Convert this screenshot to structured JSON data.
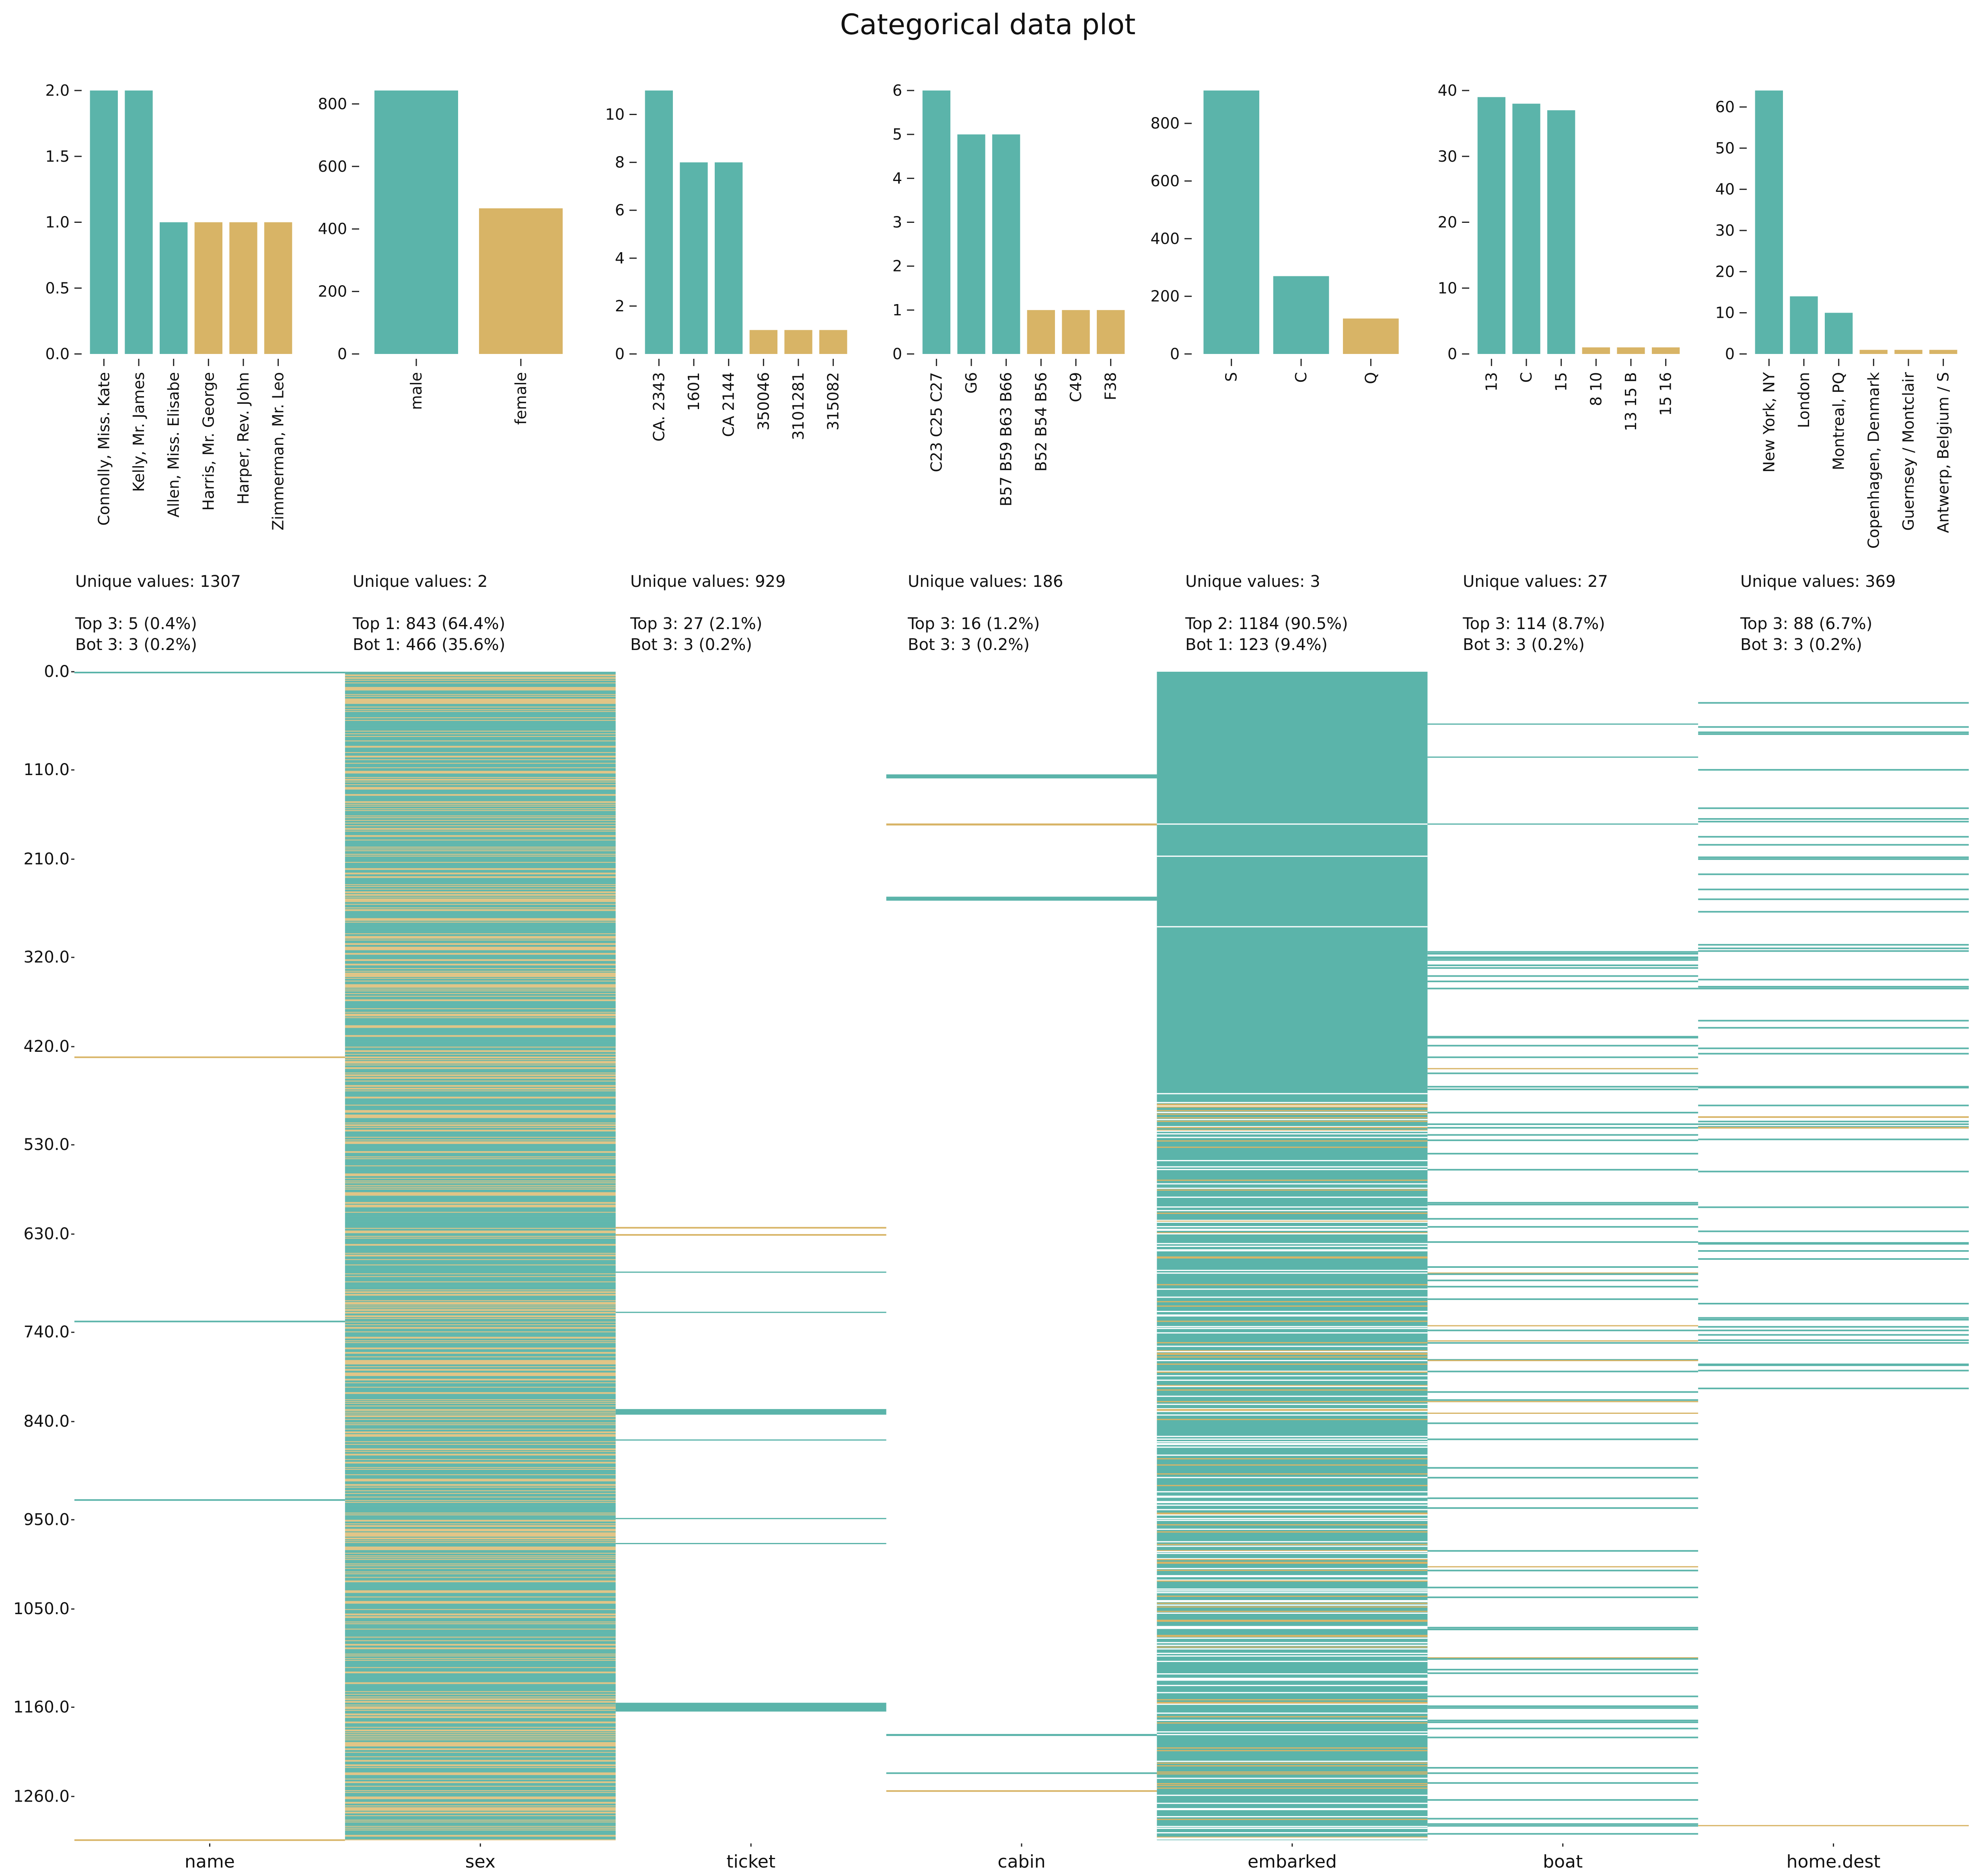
{
  "title": "Categorical data plot",
  "colors": {
    "top": "#5bb4aa",
    "bottom": "#d8b466",
    "axis": "#222222"
  },
  "chart_data": [
    {
      "type": "bar",
      "column": "name",
      "categories": [
        "Connolly, Miss. Kate",
        "Kelly, Mr. James",
        "Allen, Miss. Elisabe",
        "Harris, Mr. George",
        "Harper, Rev. John",
        "Zimmerman, Mr. Leo"
      ],
      "values": [
        2,
        2,
        1,
        1,
        1,
        1
      ],
      "top_count": 3,
      "yticks": [
        "0.0",
        "0.5",
        "1.0",
        "1.5",
        "2.0"
      ],
      "ylim": [
        0,
        2
      ]
    },
    {
      "type": "bar",
      "column": "sex",
      "categories": [
        "male",
        "female"
      ],
      "values": [
        843,
        466
      ],
      "top_count": 1,
      "yticks": [
        "0",
        "200",
        "400",
        "600",
        "800"
      ],
      "ylim": [
        0,
        843
      ]
    },
    {
      "type": "bar",
      "column": "ticket",
      "categories": [
        "CA. 2343",
        "1601",
        "CA 2144",
        "350046",
        "3101281",
        "315082"
      ],
      "values": [
        11,
        8,
        8,
        1,
        1,
        1
      ],
      "top_count": 3,
      "yticks": [
        "0",
        "2",
        "4",
        "6",
        "8",
        "10"
      ],
      "ylim": [
        0,
        11
      ]
    },
    {
      "type": "bar",
      "column": "cabin",
      "categories": [
        "C23 C25 C27",
        "G6",
        "B57 B59 B63 B66",
        "B52 B54 B56",
        "C49",
        "F38"
      ],
      "values": [
        6,
        5,
        5,
        1,
        1,
        1
      ],
      "top_count": 3,
      "yticks": [
        "0",
        "1",
        "2",
        "3",
        "4",
        "5",
        "6"
      ],
      "ylim": [
        0,
        6
      ]
    },
    {
      "type": "bar",
      "column": "embarked",
      "categories": [
        "S",
        "C",
        "Q"
      ],
      "values": [
        914,
        270,
        123
      ],
      "top_count": 2,
      "yticks": [
        "0",
        "200",
        "400",
        "600",
        "800"
      ],
      "ylim": [
        0,
        914
      ]
    },
    {
      "type": "bar",
      "column": "boat",
      "categories": [
        "13",
        "C",
        "15",
        "8 10",
        "13 15 B",
        "15 16"
      ],
      "values": [
        39,
        38,
        37,
        1,
        1,
        1
      ],
      "top_count": 3,
      "yticks": [
        "0",
        "10",
        "20",
        "30",
        "40"
      ],
      "ylim": [
        0,
        40
      ]
    },
    {
      "type": "bar",
      "column": "home.dest",
      "categories": [
        "New York, NY",
        "London",
        "Montreal, PQ",
        "Copenhagen, Denmark",
        "Guernsey / Montclair",
        "Antwerp, Belgium / S"
      ],
      "values": [
        64,
        14,
        10,
        1,
        1,
        1
      ],
      "top_count": 3,
      "yticks": [
        "0",
        "10",
        "20",
        "30",
        "40",
        "50",
        "60"
      ],
      "ylim": [
        0,
        64
      ]
    }
  ],
  "stats": [
    {
      "unique": "Unique values: 1307",
      "top": "Top 3: 5 (0.4%)",
      "bot": "Bot 3: 3 (0.2%)"
    },
    {
      "unique": "Unique values: 2",
      "top": "Top 1: 843 (64.4%)",
      "bot": "Bot 1: 466 (35.6%)"
    },
    {
      "unique": "Unique values: 929",
      "top": "Top 3: 27 (2.1%)",
      "bot": "Bot 3: 3 (0.2%)"
    },
    {
      "unique": "Unique values: 186",
      "top": "Top 3: 16 (1.2%)",
      "bot": "Bot 3: 3 (0.2%)"
    },
    {
      "unique": "Unique values: 3",
      "top": "Top 2: 1184 (90.5%)",
      "bot": "Bot 1: 123 (9.4%)"
    },
    {
      "unique": "Unique values: 27",
      "top": "Top 3: 114 (8.7%)",
      "bot": "Bot 3: 3 (0.2%)"
    },
    {
      "unique": "Unique values: 369",
      "top": "Top 3: 88 (6.7%)",
      "bot": "Bot 3: 3 (0.2%)"
    }
  ],
  "rows": {
    "yticks": [
      "0.0",
      "110.0",
      "210.0",
      "320.0",
      "420.0",
      "530.0",
      "630.0",
      "740.0",
      "840.0",
      "950.0",
      "1050.0",
      "1160.0",
      "1260.0"
    ],
    "ytick_values": [
      0,
      110,
      210,
      320,
      420,
      530,
      630,
      740,
      840,
      950,
      1050,
      1160,
      1260
    ],
    "n_rows": 1309
  }
}
